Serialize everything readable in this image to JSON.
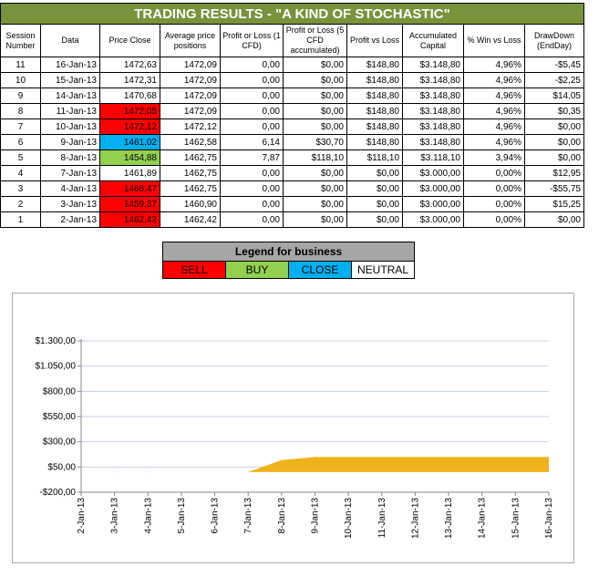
{
  "title": "TRADING RESULTS - \"A KIND OF STOCHASTIC\"",
  "headers": [
    "Session Number",
    "Data",
    "Price Close",
    "Average price positions",
    "Profit or Loss (1 CFD)",
    "Profit or Loss (5 CFD accumulated)",
    "Profit vs Loss",
    "Accumulated Capital",
    "% Win vs Loss",
    "DrawDown (EndDay)"
  ],
  "rows": [
    {
      "session": "11",
      "date": "16-Jan-13",
      "price": "1472,63",
      "signal": "neutral",
      "avg": "1472,09",
      "pl1": "0,00",
      "pl5": "$0,00",
      "pvl": "$148,80",
      "capital": "$3.148,80",
      "win": "4,96%",
      "dd": "-$5,45"
    },
    {
      "session": "10",
      "date": "15-Jan-13",
      "price": "1472,31",
      "signal": "neutral",
      "avg": "1472,09",
      "pl1": "0,00",
      "pl5": "$0,00",
      "pvl": "$148,80",
      "capital": "$3.148,80",
      "win": "4,96%",
      "dd": "-$2,25"
    },
    {
      "session": "9",
      "date": "14-Jan-13",
      "price": "1470,68",
      "signal": "neutral",
      "avg": "1472,09",
      "pl1": "0,00",
      "pl5": "$0,00",
      "pvl": "$148,80",
      "capital": "$3.148,80",
      "win": "4,96%",
      "dd": "$14,05"
    },
    {
      "session": "8",
      "date": "11-Jan-13",
      "price": "1472,05",
      "signal": "sell",
      "avg": "1472,09",
      "pl1": "0,00",
      "pl5": "$0,00",
      "pvl": "$148,80",
      "capital": "$3.148,80",
      "win": "4,96%",
      "dd": "$0,35"
    },
    {
      "session": "7",
      "date": "10-Jan-13",
      "price": "1472,12",
      "signal": "sell",
      "avg": "1472,12",
      "pl1": "0,00",
      "pl5": "$0,00",
      "pvl": "$148,80",
      "capital": "$3.148,80",
      "win": "4,96%",
      "dd": "$0,00"
    },
    {
      "session": "6",
      "date": "9-Jan-13",
      "price": "1461,02",
      "signal": "close",
      "avg": "1462,58",
      "pl1": "6,14",
      "pl5": "$30,70",
      "pvl": "$148,80",
      "capital": "$3.148,80",
      "win": "4,96%",
      "dd": "$0,00"
    },
    {
      "session": "5",
      "date": "8-Jan-13",
      "price": "1454,88",
      "signal": "buy",
      "avg": "1462,75",
      "pl1": "7,87",
      "pl5": "$118,10",
      "pvl": "$118,10",
      "capital": "$3.118,10",
      "win": "3,94%",
      "dd": "$0,00"
    },
    {
      "session": "4",
      "date": "7-Jan-13",
      "price": "1461,89",
      "signal": "neutral",
      "avg": "1462,75",
      "pl1": "0,00",
      "pl5": "$0,00",
      "pvl": "$0,00",
      "capital": "$3.000,00",
      "win": "0,00%",
      "dd": "$12,95"
    },
    {
      "session": "3",
      "date": "4-Jan-13",
      "price": "1466,47",
      "signal": "sell",
      "avg": "1462,75",
      "pl1": "0,00",
      "pl5": "$0,00",
      "pvl": "$0,00",
      "capital": "$3.000,00",
      "win": "0,00%",
      "dd": "-$55,75"
    },
    {
      "session": "2",
      "date": "3-Jan-13",
      "price": "1459,37",
      "signal": "sell",
      "avg": "1460,90",
      "pl1": "0,00",
      "pl5": "$0,00",
      "pvl": "$0,00",
      "capital": "$3.000,00",
      "win": "0,00%",
      "dd": "$15,25"
    },
    {
      "session": "1",
      "date": "2-Jan-13",
      "price": "1462,42",
      "signal": "sell",
      "avg": "1462,42",
      "pl1": "0,00",
      "pl5": "$0,00",
      "pvl": "$0,00",
      "capital": "$3.000,00",
      "win": "0,00%",
      "dd": "$0,00"
    }
  ],
  "signal_colors": {
    "sell": "#ff0000",
    "buy": "#92d050",
    "close": "#00b0f0",
    "neutral": "#ffffff"
  },
  "legend": {
    "title": "Legend for business",
    "items": [
      {
        "label": "SELL",
        "color": "#ff0000"
      },
      {
        "label": "BUY",
        "color": "#92d050"
      },
      {
        "label": "CLOSE",
        "color": "#00b0f0"
      },
      {
        "label": "NEUTRAL",
        "color": "#ffffff"
      }
    ]
  },
  "chart_data": {
    "type": "area",
    "categories": [
      "2-Jan-13",
      "3-Jan-13",
      "4-Jan-13",
      "5-Jan-13",
      "6-Jan-13",
      "7-Jan-13",
      "8-Jan-13",
      "9-Jan-13",
      "10-Jan-13",
      "11-Jan-13",
      "12-Jan-13",
      "13-Jan-13",
      "14-Jan-13",
      "15-Jan-13",
      "16-Jan-13"
    ],
    "x": [
      "2-Jan-13",
      "3-Jan-13",
      "4-Jan-13",
      "7-Jan-13",
      "8-Jan-13",
      "9-Jan-13",
      "10-Jan-13",
      "11-Jan-13",
      "14-Jan-13",
      "15-Jan-13",
      "16-Jan-13"
    ],
    "values": [
      0,
      0,
      0,
      0,
      118.1,
      148.8,
      148.8,
      148.8,
      148.8,
      148.8,
      148.8
    ],
    "ytick_labels": [
      "-$200,00",
      "$50,00",
      "$300,00",
      "$550,00",
      "$800,00",
      "$1.050,00",
      "$1.300,00"
    ],
    "ytick_values": [
      -200,
      50,
      300,
      550,
      800,
      1050,
      1300
    ],
    "ylim": [
      -200,
      1300
    ],
    "grid": true,
    "fill_color": "#f0b21b",
    "title": "",
    "xlabel": "",
    "ylabel": ""
  }
}
